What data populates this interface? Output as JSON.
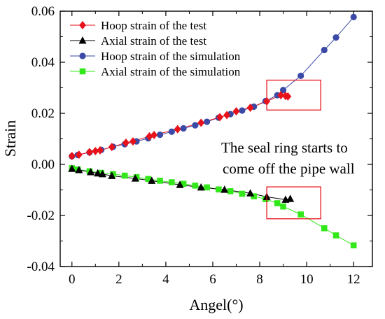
{
  "chart_data": {
    "type": "line",
    "title": "",
    "xlabel": "Angel(°)",
    "ylabel": "Strain",
    "xlim": [
      -0.5,
      12.8
    ],
    "ylim": [
      -0.04,
      0.06
    ],
    "xticks": [
      0,
      2,
      4,
      6,
      8,
      10,
      12
    ],
    "yticks": [
      -0.04,
      -0.02,
      0.0,
      0.02,
      0.04,
      0.06
    ],
    "xtick_labels": [
      "0",
      "2",
      "4",
      "6",
      "8",
      "10",
      "12"
    ],
    "ytick_labels": [
      "-0.04",
      "-0.02",
      "0.00",
      "0.02",
      "0.04",
      "0.06"
    ],
    "grid": false,
    "legend_position": "top-left",
    "series": [
      {
        "name": "Hoop strain of the test",
        "color": "#e8121b",
        "marker": "diamond",
        "x": [
          0,
          0.3,
          0.75,
          1.0,
          1.2,
          1.7,
          2.3,
          2.6,
          3.3,
          3.5,
          4.5,
          5.5,
          6.3,
          6.6,
          7.0,
          7.6,
          8.3,
          8.9,
          9.1,
          9.2
        ],
        "y": [
          0.0033,
          0.0038,
          0.0048,
          0.0052,
          0.0055,
          0.0068,
          0.0085,
          0.009,
          0.011,
          0.0115,
          0.0138,
          0.0163,
          0.0185,
          0.0193,
          0.0208,
          0.0222,
          0.0247,
          0.0271,
          0.0268,
          0.0266
        ]
      },
      {
        "name": "Axial strain of the test",
        "color": "#000000",
        "marker": "triangle",
        "x": [
          0,
          0.3,
          0.8,
          1.1,
          1.3,
          1.7,
          2.7,
          3.4,
          4.6,
          5.5,
          6.5,
          7.6,
          8.3,
          9.1,
          9.3
        ],
        "y": [
          -0.0017,
          -0.0022,
          -0.003,
          -0.0035,
          -0.0038,
          -0.0045,
          -0.0055,
          -0.0064,
          -0.008,
          -0.009,
          -0.0099,
          -0.0113,
          -0.0127,
          -0.0138,
          -0.0135
        ]
      },
      {
        "name": "Hoop strain of the simulation",
        "color": "#3a4aa6",
        "marker": "circle",
        "x": [
          0.0,
          0.25,
          0.75,
          1.25,
          1.75,
          2.25,
          2.75,
          3.25,
          3.75,
          4.25,
          4.75,
          5.25,
          5.75,
          6.25,
          6.75,
          7.25,
          7.75,
          8.25,
          8.75,
          9.0,
          9.75,
          10.75,
          11.25,
          12.0
        ],
        "y": [
          0.0032,
          0.0037,
          0.0047,
          0.0057,
          0.0069,
          0.0079,
          0.009,
          0.0102,
          0.0116,
          0.0128,
          0.0141,
          0.0153,
          0.0167,
          0.0183,
          0.0197,
          0.0211,
          0.0226,
          0.0248,
          0.0271,
          0.0291,
          0.0347,
          0.0448,
          0.0497,
          0.0577
        ]
      },
      {
        "name": "Axial strain of the simulation",
        "color": "#33e81a",
        "marker": "square",
        "x": [
          0.0,
          0.25,
          0.75,
          1.25,
          1.75,
          2.25,
          2.75,
          3.25,
          3.75,
          4.25,
          4.75,
          5.25,
          5.75,
          6.25,
          6.75,
          7.25,
          7.75,
          8.25,
          8.75,
          9.0,
          9.75,
          10.75,
          11.25,
          12.0
        ],
        "y": [
          -0.0015,
          -0.002,
          -0.0027,
          -0.0033,
          -0.0038,
          -0.0044,
          -0.005,
          -0.0057,
          -0.0064,
          -0.007,
          -0.0076,
          -0.0083,
          -0.009,
          -0.0098,
          -0.0105,
          -0.0115,
          -0.0125,
          -0.0136,
          -0.0152,
          -0.0165,
          -0.0196,
          -0.025,
          -0.0278,
          -0.0317
        ]
      }
    ],
    "annotations": [
      {
        "text_lines": [
          "The seal ring starts to",
          "come off the pipe wall"
        ]
      }
    ],
    "highlight_boxes": [
      {
        "x_range": [
          8.3,
          10.6
        ],
        "y_range": [
          0.0213,
          0.033
        ],
        "color": "#e8121b"
      },
      {
        "x_range": [
          8.3,
          10.6
        ],
        "y_range": [
          -0.0213,
          -0.0088
        ],
        "color": "#e8121b"
      }
    ]
  }
}
